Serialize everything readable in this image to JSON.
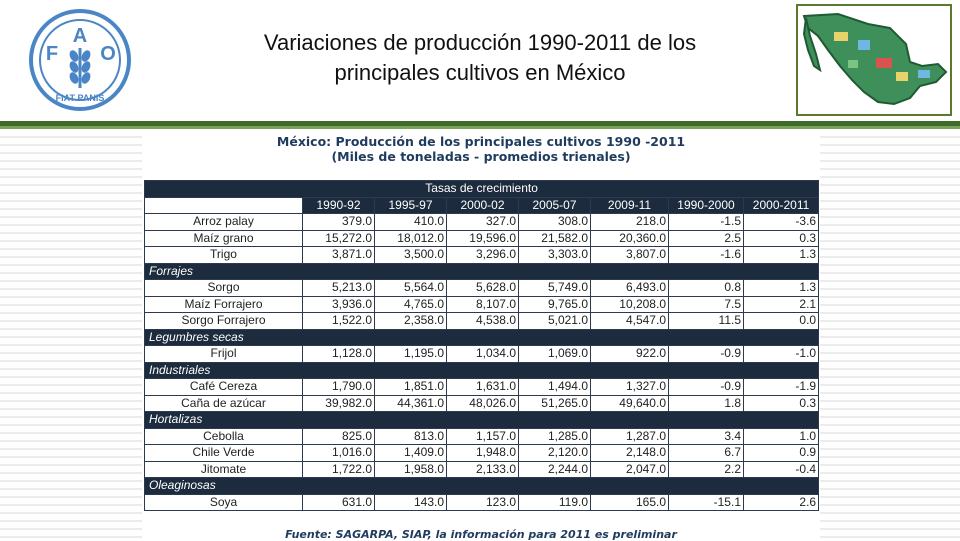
{
  "logo": {
    "top_letters": [
      "F",
      "A",
      "O"
    ],
    "motto": "FIAT PANIS"
  },
  "slide": {
    "title_line1": "Variaciones de producción 1990-2011 de los",
    "title_line2": "principales cultivos en México"
  },
  "table": {
    "title_line1": "México: Producción de los principales cultivos 1990 -2011",
    "title_line2": "(Miles de toneladas - promedios trienales)",
    "super_header": "Tasas de crecimiento",
    "columns": [
      "1990-92",
      "1995-97",
      "2000-02",
      "2005-07",
      "2009-11",
      "1990-2000",
      "2000-2011"
    ],
    "rows": [
      {
        "type": "crop",
        "name": "Arroz palay",
        "values": [
          "379.0",
          "410.0",
          "327.0",
          "308.0",
          "218.0",
          "-1.5",
          "-3.6"
        ]
      },
      {
        "type": "crop",
        "name": "Maíz grano",
        "values": [
          "15,272.0",
          "18,012.0",
          "19,596.0",
          "21,582.0",
          "20,360.0",
          "2.5",
          "0.3"
        ]
      },
      {
        "type": "crop",
        "name": "Trigo",
        "values": [
          "3,871.0",
          "3,500.0",
          "3,296.0",
          "3,303.0",
          "3,807.0",
          "-1.6",
          "1.3"
        ]
      },
      {
        "type": "category",
        "name": "Forrajes"
      },
      {
        "type": "crop",
        "name": "Sorgo",
        "values": [
          "5,213.0",
          "5,564.0",
          "5,628.0",
          "5,749.0",
          "6,493.0",
          "0.8",
          "1.3"
        ]
      },
      {
        "type": "crop",
        "name": "Maíz Forrajero",
        "values": [
          "3,936.0",
          "4,765.0",
          "8,107.0",
          "9,765.0",
          "10,208.0",
          "7.5",
          "2.1"
        ]
      },
      {
        "type": "crop",
        "name": "Sorgo Forrajero",
        "values": [
          "1,522.0",
          "2,358.0",
          "4,538.0",
          "5,021.0",
          "4,547.0",
          "11.5",
          "0.0"
        ]
      },
      {
        "type": "category",
        "name": "Legumbres secas"
      },
      {
        "type": "crop",
        "name": "Frijol",
        "values": [
          "1,128.0",
          "1,195.0",
          "1,034.0",
          "1,069.0",
          "922.0",
          "-0.9",
          "-1.0"
        ]
      },
      {
        "type": "category",
        "name": "Industriales"
      },
      {
        "type": "crop",
        "name": "Café Cereza",
        "values": [
          "1,790.0",
          "1,851.0",
          "1,631.0",
          "1,494.0",
          "1,327.0",
          "-0.9",
          "-1.9"
        ]
      },
      {
        "type": "crop",
        "name": "Caña de azúcar",
        "values": [
          "39,982.0",
          "44,361.0",
          "48,026.0",
          "51,265.0",
          "49,640.0",
          "1.8",
          "0.3"
        ]
      },
      {
        "type": "category",
        "name": "Hortalizas"
      },
      {
        "type": "crop",
        "name": "Cebolla",
        "values": [
          "825.0",
          "813.0",
          "1,157.0",
          "1,285.0",
          "1,287.0",
          "3.4",
          "1.0"
        ]
      },
      {
        "type": "crop",
        "name": "Chile Verde",
        "values": [
          "1,016.0",
          "1,409.0",
          "1,948.0",
          "2,120.0",
          "2,148.0",
          "6.7",
          "0.9"
        ]
      },
      {
        "type": "crop",
        "name": "Jitomate",
        "values": [
          "1,722.0",
          "1,958.0",
          "2,133.0",
          "2,244.0",
          "2,047.0",
          "2.2",
          "-0.4"
        ]
      },
      {
        "type": "category",
        "name": "Oleaginosas"
      },
      {
        "type": "crop",
        "name": "Soya",
        "values": [
          "631.0",
          "143.0",
          "123.0",
          "119.0",
          "165.0",
          "-15.1",
          "2.6"
        ]
      }
    ],
    "source": "Fuente: SAGARPA, SIAP, la información para 2011 es preliminar"
  },
  "colors": {
    "header_bg": "#1c2b3d",
    "rule_green": "#3e6b2a",
    "logo_blue": "#4a86c5",
    "title_blue": "#1f3b5e"
  }
}
